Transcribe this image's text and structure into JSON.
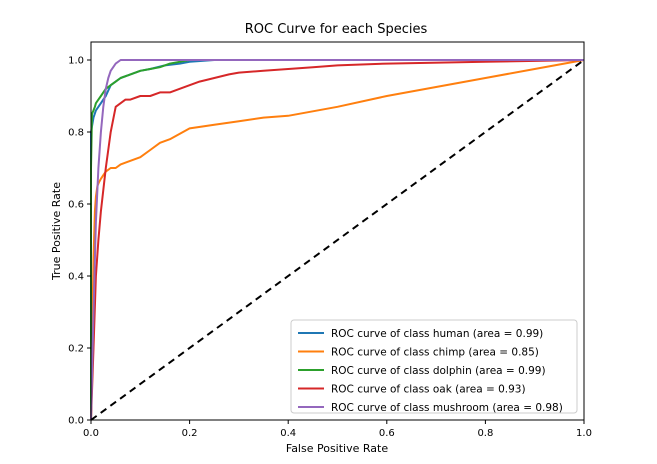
{
  "chart_data": {
    "type": "line",
    "title": "ROC Curve for each Species",
    "xlabel": "False Positive Rate",
    "ylabel": "True Positive Rate",
    "xlim": [
      0.0,
      1.0
    ],
    "ylim": [
      0.0,
      1.05
    ],
    "xticks": [
      0.0,
      0.2,
      0.4,
      0.6,
      0.8,
      1.0
    ],
    "xtick_labels": [
      "0.0",
      "0.2",
      "0.4",
      "0.6",
      "0.8",
      "1.0"
    ],
    "yticks": [
      0.0,
      0.2,
      0.4,
      0.6,
      0.8,
      1.0
    ],
    "ytick_labels": [
      "0.0",
      "0.2",
      "0.4",
      "0.6",
      "0.8",
      "1.0"
    ],
    "grid": false,
    "legend_position": "lower-right",
    "series": [
      {
        "name": "ROC curve of class human (area = 0.99)",
        "color": "#1f77b4",
        "x": [
          0.0,
          0.0,
          0.005,
          0.01,
          0.015,
          0.02,
          0.025,
          0.03,
          0.04,
          0.05,
          0.06,
          0.08,
          0.1,
          0.12,
          0.15,
          0.18,
          0.2,
          0.25,
          0.3,
          0.5,
          1.0
        ],
        "y": [
          0.0,
          0.8,
          0.84,
          0.86,
          0.87,
          0.88,
          0.89,
          0.9,
          0.93,
          0.94,
          0.95,
          0.96,
          0.97,
          0.975,
          0.985,
          0.99,
          0.995,
          1.0,
          1.0,
          1.0,
          1.0
        ]
      },
      {
        "name": "ROC curve of class chimp (area = 0.85)",
        "color": "#ff7f0e",
        "x": [
          0.0,
          0.002,
          0.005,
          0.008,
          0.01,
          0.013,
          0.016,
          0.02,
          0.025,
          0.03,
          0.04,
          0.05,
          0.06,
          0.08,
          0.1,
          0.12,
          0.14,
          0.16,
          0.2,
          0.25,
          0.3,
          0.35,
          0.4,
          0.5,
          0.6,
          0.7,
          0.8,
          0.9,
          1.0
        ],
        "y": [
          0.0,
          0.2,
          0.45,
          0.58,
          0.62,
          0.65,
          0.66,
          0.67,
          0.68,
          0.69,
          0.7,
          0.7,
          0.71,
          0.72,
          0.73,
          0.75,
          0.77,
          0.78,
          0.81,
          0.82,
          0.83,
          0.84,
          0.845,
          0.87,
          0.9,
          0.925,
          0.95,
          0.975,
          1.0
        ]
      },
      {
        "name": "ROC curve of class dolphin (area = 0.99)",
        "color": "#2ca02c",
        "x": [
          0.0,
          0.0,
          0.002,
          0.005,
          0.008,
          0.01,
          0.015,
          0.02,
          0.03,
          0.04,
          0.05,
          0.06,
          0.08,
          0.1,
          0.12,
          0.14,
          0.16,
          0.18,
          0.2,
          1.0
        ],
        "y": [
          0.0,
          0.7,
          0.85,
          0.86,
          0.87,
          0.88,
          0.89,
          0.9,
          0.92,
          0.93,
          0.94,
          0.95,
          0.96,
          0.97,
          0.975,
          0.98,
          0.99,
          0.995,
          1.0,
          1.0
        ]
      },
      {
        "name": "ROC curve of class oak (area = 0.93)",
        "color": "#d62728",
        "x": [
          0.0,
          0.005,
          0.01,
          0.015,
          0.02,
          0.03,
          0.04,
          0.05,
          0.06,
          0.07,
          0.08,
          0.1,
          0.12,
          0.14,
          0.16,
          0.18,
          0.2,
          0.22,
          0.25,
          0.28,
          0.3,
          0.35,
          0.4,
          0.45,
          0.5,
          0.6,
          0.8,
          1.0
        ],
        "y": [
          0.0,
          0.2,
          0.4,
          0.5,
          0.58,
          0.7,
          0.8,
          0.87,
          0.88,
          0.89,
          0.89,
          0.9,
          0.9,
          0.91,
          0.91,
          0.92,
          0.93,
          0.94,
          0.95,
          0.96,
          0.965,
          0.97,
          0.975,
          0.98,
          0.985,
          0.99,
          0.995,
          1.0
        ]
      },
      {
        "name": "ROC curve of class mushroom (area = 0.98)",
        "color": "#9467bd",
        "x": [
          0.0,
          0.005,
          0.01,
          0.015,
          0.02,
          0.025,
          0.03,
          0.035,
          0.04,
          0.05,
          0.06,
          0.07,
          0.08,
          1.0
        ],
        "y": [
          0.0,
          0.3,
          0.55,
          0.7,
          0.8,
          0.87,
          0.92,
          0.95,
          0.97,
          0.99,
          1.0,
          1.0,
          1.0,
          1.0
        ]
      }
    ],
    "reference_line": {
      "x": [
        0.0,
        1.0
      ],
      "y": [
        0.0,
        1.0
      ],
      "style": "dashed",
      "color": "#000000"
    }
  }
}
